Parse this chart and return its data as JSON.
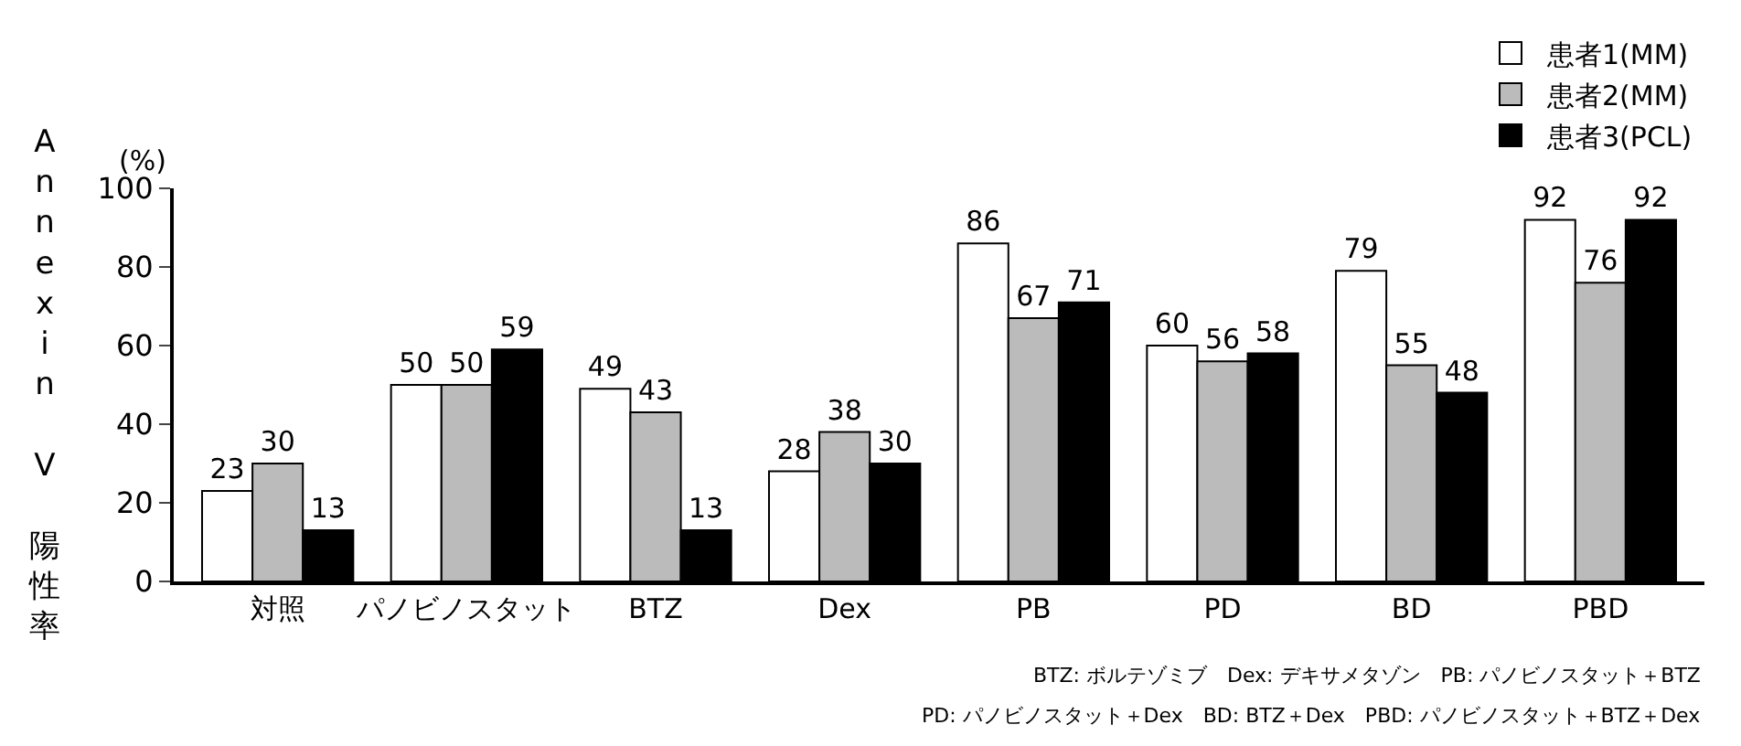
{
  "chart_data": {
    "type": "bar",
    "ylabel": "Annexin V 陽性率",
    "categories": [
      "対照",
      "パノビノスタット",
      "BTZ",
      "Dex",
      "PB",
      "PD",
      "BD",
      "PBD"
    ],
    "series": [
      {
        "name": "患者1(MM)",
        "color": "#ffffff",
        "values": [
          23,
          50,
          49,
          28,
          86,
          60,
          79,
          92
        ]
      },
      {
        "name": "患者2(MM)",
        "color": "#bbbbbb",
        "values": [
          30,
          50,
          43,
          38,
          67,
          56,
          55,
          76
        ]
      },
      {
        "name": "患者3(PCL)",
        "color": "#000000",
        "values": [
          13,
          59,
          13,
          30,
          71,
          58,
          48,
          92
        ]
      }
    ],
    "ylim": [
      0,
      100
    ],
    "yticks": [
      0,
      20,
      40,
      60,
      80,
      100
    ],
    "legend": "top right",
    "data_labels": true,
    "annotations": [
      "(%)",
      "BTZ: ボルテゾミブ　Dex: デキサメタゾン　PB: パノビノスタット＋BTZ",
      "PD: パノビノスタット＋Dex　BD: BTZ＋Dex　PBD: パノビノスタット＋BTZ＋Dex"
    ]
  }
}
